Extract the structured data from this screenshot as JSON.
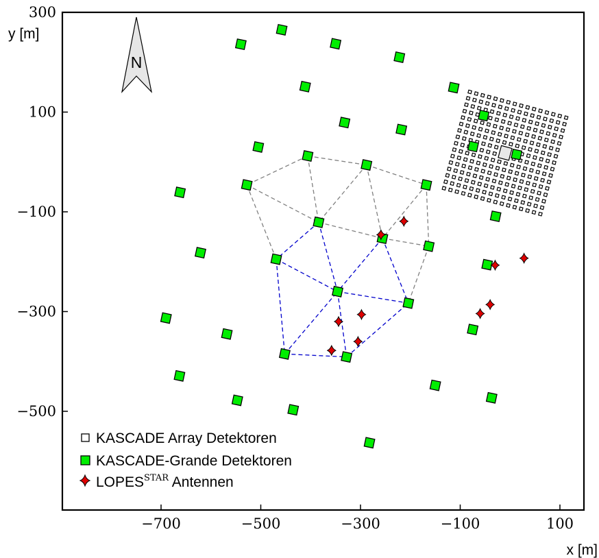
{
  "chart_data": {
    "type": "scatter",
    "xlabel": "x [m]",
    "ylabel": "y [m]",
    "xlim": [
      -700,
      100
    ],
    "ylim": [
      -500,
      300
    ],
    "x_ticks": [
      -700,
      -500,
      -300,
      -100,
      100
    ],
    "y_ticks": [
      -500,
      -300,
      -100,
      100,
      300
    ],
    "x_tick_labels": [
      "−700",
      "−500",
      "−300",
      "−100",
      "100"
    ],
    "y_tick_labels": [
      "−500",
      "−300",
      "−100",
      "100",
      "300"
    ],
    "north_label": "N",
    "legend": {
      "position": "bottom-left",
      "entries": [
        {
          "series": "kascade",
          "label": "KASCADE Array Detektoren"
        },
        {
          "series": "grande",
          "label": "KASCADE-Grande Detektoren"
        },
        {
          "series": "lopes",
          "label": "LOPES",
          "sup": "STAR",
          "suffix": " Antennen"
        }
      ]
    },
    "colors": {
      "grande": "#00ee00",
      "lopes": "#dd0000",
      "kascade": "#ffffff",
      "triangles_upper": "#808080",
      "triangles_lower": "#0000cc"
    },
    "kascade_array": {
      "center": [
        -10,
        18
      ],
      "size": 200,
      "grid": 16,
      "rotation_deg": 15,
      "central_building": [
        -10,
        18
      ]
    },
    "series": [
      {
        "id": "grande",
        "points": [
          [
            -540,
            236
          ],
          [
            -458,
            265
          ],
          [
            -350,
            237
          ],
          [
            -222,
            210
          ],
          [
            -411,
            151
          ],
          [
            -113,
            149
          ],
          [
            -332,
            79
          ],
          [
            -218,
            65
          ],
          [
            -505,
            30
          ],
          [
            -406,
            12
          ],
          [
            -288,
            -6
          ],
          [
            -528,
            -46
          ],
          [
            -168,
            -46
          ],
          [
            -662,
            -61
          ],
          [
            -384,
            -121
          ],
          [
            -256,
            -153
          ],
          [
            -29,
            -109
          ],
          [
            -163,
            -169
          ],
          [
            -621,
            -182
          ],
          [
            -469,
            -195
          ],
          [
            -346,
            -260
          ],
          [
            -204,
            -283
          ],
          [
            -46,
            -206
          ],
          [
            -690,
            -313
          ],
          [
            -568,
            -345
          ],
          [
            -75,
            -336
          ],
          [
            -452,
            -385
          ],
          [
            -328,
            -391
          ],
          [
            -663,
            -429
          ],
          [
            -150,
            -448
          ],
          [
            -547,
            -478
          ],
          [
            -435,
            -497
          ],
          [
            -37,
            -473
          ],
          [
            -282,
            -563
          ],
          [
            -74,
            31
          ],
          [
            13,
            15
          ],
          [
            -53,
            93
          ]
        ]
      },
      {
        "id": "lopes",
        "points": [
          [
            -213,
            -119
          ],
          [
            -259,
            -146
          ],
          [
            -30,
            -207
          ],
          [
            28,
            -193
          ],
          [
            -344,
            -320
          ],
          [
            -298,
            -306
          ],
          [
            -305,
            -360
          ],
          [
            -358,
            -378
          ],
          [
            -60,
            -304
          ],
          [
            -40,
            -286
          ]
        ]
      }
    ],
    "triangles": {
      "upper": [
        [
          [
            -406,
            12
          ],
          [
            -528,
            -46
          ]
        ],
        [
          [
            -406,
            12
          ],
          [
            -288,
            -6
          ]
        ],
        [
          [
            -288,
            -6
          ],
          [
            -168,
            -46
          ]
        ],
        [
          [
            -406,
            12
          ],
          [
            -384,
            -121
          ]
        ],
        [
          [
            -528,
            -46
          ],
          [
            -384,
            -121
          ]
        ],
        [
          [
            -288,
            -6
          ],
          [
            -384,
            -121
          ]
        ],
        [
          [
            -288,
            -6
          ],
          [
            -256,
            -153
          ]
        ],
        [
          [
            -168,
            -46
          ],
          [
            -256,
            -153
          ]
        ],
        [
          [
            -168,
            -46
          ],
          [
            -163,
            -169
          ]
        ],
        [
          [
            -256,
            -153
          ],
          [
            -163,
            -169
          ]
        ],
        [
          [
            -163,
            -169
          ],
          [
            -204,
            -283
          ]
        ],
        [
          [
            -528,
            -46
          ],
          [
            -469,
            -195
          ]
        ],
        [
          [
            -384,
            -121
          ],
          [
            -256,
            -153
          ]
        ]
      ],
      "lower": [
        [
          [
            -384,
            -121
          ],
          [
            -469,
            -195
          ]
        ],
        [
          [
            -384,
            -121
          ],
          [
            -346,
            -260
          ]
        ],
        [
          [
            -256,
            -153
          ],
          [
            -346,
            -260
          ]
        ],
        [
          [
            -256,
            -153
          ],
          [
            -204,
            -283
          ]
        ],
        [
          [
            -469,
            -195
          ],
          [
            -346,
            -260
          ]
        ],
        [
          [
            -346,
            -260
          ],
          [
            -204,
            -283
          ]
        ],
        [
          [
            -469,
            -195
          ],
          [
            -452,
            -385
          ]
        ],
        [
          [
            -452,
            -385
          ],
          [
            -346,
            -260
          ]
        ],
        [
          [
            -346,
            -260
          ],
          [
            -328,
            -391
          ]
        ],
        [
          [
            -452,
            -385
          ],
          [
            -328,
            -391
          ]
        ],
        [
          [
            -328,
            -391
          ],
          [
            -204,
            -283
          ]
        ]
      ]
    }
  }
}
